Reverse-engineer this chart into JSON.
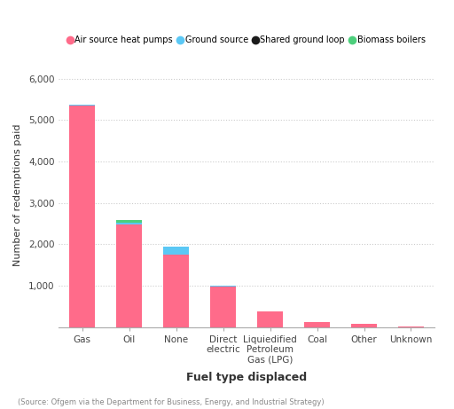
{
  "categories": [
    "Gas",
    "Oil",
    "None",
    "Direct\nelectric",
    "Liquiedified\nPetroleum\nGas (LPG)",
    "Coal",
    "Other",
    "Unknown"
  ],
  "air_source": [
    5350,
    2470,
    1760,
    980,
    380,
    110,
    70,
    8
  ],
  "ground_source": [
    20,
    50,
    180,
    25,
    3,
    3,
    0,
    0
  ],
  "shared_ground": [
    0,
    0,
    0,
    0,
    0,
    0,
    0,
    0
  ],
  "biomass": [
    0,
    60,
    0,
    0,
    0,
    8,
    0,
    0
  ],
  "color_air": "#FF6B8A",
  "color_ground": "#5BC8F5",
  "color_shared": "#1A1A1A",
  "color_biomass": "#4DCF7C",
  "ylabel": "Number of redemptions paid",
  "xlabel": "Fuel type displaced",
  "ylim": [
    0,
    6400
  ],
  "yticks": [
    0,
    1000,
    2000,
    3000,
    4000,
    5000,
    6000
  ],
  "ytick_labels": [
    "",
    "1,000",
    "2,000",
    "3,000",
    "4,000",
    "5,000",
    "6,000"
  ],
  "source_text": "(Source: Ofgem via the Department for Business, Energy, and Industrial Strategy)",
  "legend_labels": [
    "Air source heat pumps",
    "Ground source",
    "Shared ground loop",
    "Biomass boilers"
  ],
  "background_color": "#FFFFFF",
  "grid_color": "#CCCCCC"
}
